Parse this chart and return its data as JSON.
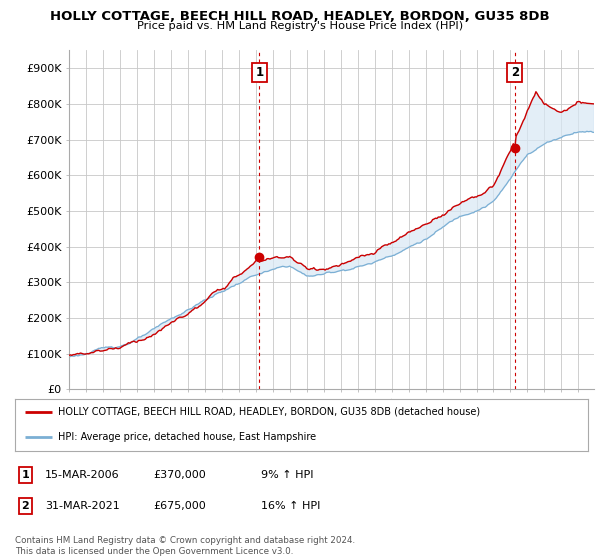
{
  "title": "HOLLY COTTAGE, BEECH HILL ROAD, HEADLEY, BORDON, GU35 8DB",
  "subtitle": "Price paid vs. HM Land Registry's House Price Index (HPI)",
  "ylabel_ticks": [
    "£0",
    "£100K",
    "£200K",
    "£300K",
    "£400K",
    "£500K",
    "£600K",
    "£700K",
    "£800K",
    "£900K"
  ],
  "ytick_vals": [
    0,
    100000,
    200000,
    300000,
    400000,
    500000,
    600000,
    700000,
    800000,
    900000
  ],
  "ylim": [
    0,
    950000
  ],
  "xlim_start": 1995.0,
  "xlim_end": 2025.92,
  "red_color": "#cc0000",
  "blue_color": "#7bafd4",
  "fill_color": "#d8e8f5",
  "marker1_x": 2006.21,
  "marker1_y": 370000,
  "marker2_x": 2021.25,
  "marker2_y": 675000,
  "legend_line1": "HOLLY COTTAGE, BEECH HILL ROAD, HEADLEY, BORDON, GU35 8DB (detached house)",
  "legend_line2": "HPI: Average price, detached house, East Hampshire",
  "note1_date": "15-MAR-2006",
  "note1_price": "£370,000",
  "note1_hpi": "9% ↑ HPI",
  "note2_date": "31-MAR-2021",
  "note2_price": "£675,000",
  "note2_hpi": "16% ↑ HPI",
  "footer": "Contains HM Land Registry data © Crown copyright and database right 2024.\nThis data is licensed under the Open Government Licence v3.0.",
  "bg_color": "#ffffff",
  "grid_color": "#c8c8c8"
}
